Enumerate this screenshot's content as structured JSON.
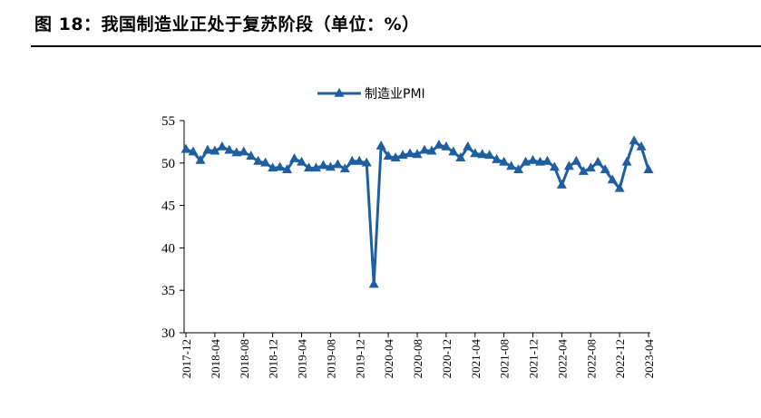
{
  "figure": {
    "title": "图 18：我国制造业正处于复苏阶段（单位：%）"
  },
  "chart_data": {
    "type": "line",
    "title": "",
    "xlabel": "",
    "ylabel": "",
    "ylim": [
      30,
      55
    ],
    "yticks": [
      30,
      35,
      40,
      45,
      50,
      55
    ],
    "grid": false,
    "legend_position": "top-center",
    "series_color": "#1f5fa0",
    "marker": "triangle",
    "x": [
      "2017-12",
      "2018-01",
      "2018-02",
      "2018-03",
      "2018-04",
      "2018-05",
      "2018-06",
      "2018-07",
      "2018-08",
      "2018-09",
      "2018-10",
      "2018-11",
      "2018-12",
      "2019-01",
      "2019-02",
      "2019-03",
      "2019-04",
      "2019-05",
      "2019-06",
      "2019-07",
      "2019-08",
      "2019-09",
      "2019-10",
      "2019-11",
      "2019-12",
      "2020-01",
      "2020-02",
      "2020-03",
      "2020-04",
      "2020-05",
      "2020-06",
      "2020-07",
      "2020-08",
      "2020-09",
      "2020-10",
      "2020-11",
      "2020-12",
      "2021-01",
      "2021-02",
      "2021-03",
      "2021-04",
      "2021-05",
      "2021-06",
      "2021-07",
      "2021-08",
      "2021-09",
      "2021-10",
      "2021-11",
      "2021-12",
      "2022-01",
      "2022-02",
      "2022-03",
      "2022-04",
      "2022-05",
      "2022-06",
      "2022-07",
      "2022-08",
      "2022-09",
      "2022-10",
      "2022-11",
      "2022-12",
      "2023-01",
      "2023-02",
      "2023-03",
      "2023-04"
    ],
    "x_tick_labels": [
      "2017-12",
      "2018-04",
      "2018-08",
      "2018-12",
      "2019-04",
      "2019-08",
      "2019-12",
      "2020-04",
      "2020-08",
      "2020-12",
      "2021-04",
      "2021-08",
      "2021-12",
      "2022-04",
      "2022-08",
      "2022-12",
      "2023-04"
    ],
    "series": [
      {
        "name": "制造业PMI",
        "values": [
          51.6,
          51.3,
          50.3,
          51.5,
          51.4,
          51.9,
          51.5,
          51.2,
          51.3,
          50.8,
          50.2,
          50.0,
          49.4,
          49.5,
          49.2,
          50.5,
          50.1,
          49.4,
          49.4,
          49.7,
          49.5,
          49.8,
          49.3,
          50.2,
          50.2,
          50.0,
          35.7,
          52.0,
          50.8,
          50.6,
          50.9,
          51.1,
          51.0,
          51.5,
          51.4,
          52.1,
          51.9,
          51.3,
          50.6,
          51.9,
          51.1,
          51.0,
          50.9,
          50.4,
          50.1,
          49.6,
          49.2,
          50.1,
          50.3,
          50.1,
          50.2,
          49.5,
          47.4,
          49.6,
          50.2,
          49.0,
          49.4,
          50.1,
          49.2,
          48.0,
          47.0,
          50.1,
          52.6,
          51.9,
          49.2
        ]
      }
    ]
  }
}
